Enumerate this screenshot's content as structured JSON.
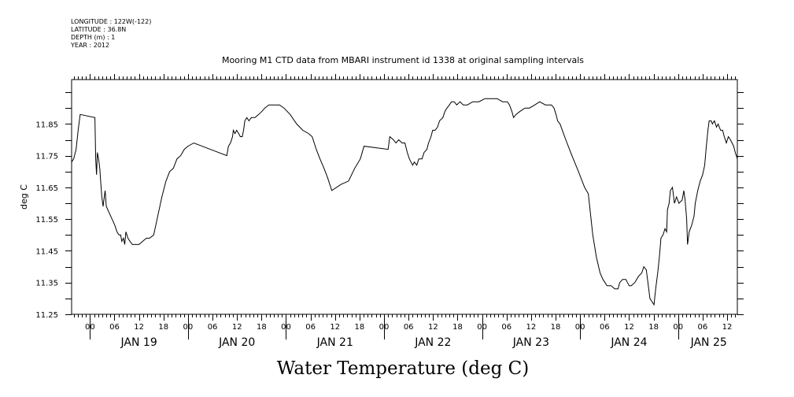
{
  "header": {
    "meta_lines": [
      "LONGITUDE : 122W(-122)",
      "LATITUDE : 36.8N",
      "DEPTH (m) : 1",
      "YEAR : 2012"
    ]
  },
  "chart_data": {
    "type": "line",
    "title": "Mooring M1 CTD data from MBARI instrument id 1338 at original sampling intervals",
    "xlabel": "Water Temperature (deg C)",
    "ylabel": "deg C",
    "x_unit": "hours since Jan 19 2012 00:00",
    "xlim": [
      -4.5,
      158.5
    ],
    "ylim": [
      11.25,
      11.99
    ],
    "y_ticks": [
      11.25,
      11.35,
      11.45,
      11.55,
      11.65,
      11.75,
      11.85
    ],
    "hour_ticks": [
      "00",
      "06",
      "12",
      "18",
      "00",
      "06",
      "12",
      "18",
      "00",
      "06",
      "12",
      "18",
      "00",
      "06",
      "12",
      "18",
      "00",
      "06",
      "12",
      "18",
      "00",
      "06",
      "12",
      "18",
      "00",
      "06",
      "12"
    ],
    "hour_tick_values": [
      0,
      6,
      12,
      18,
      24,
      30,
      36,
      42,
      48,
      54,
      60,
      66,
      72,
      78,
      84,
      90,
      96,
      102,
      108,
      114,
      120,
      126,
      132,
      138,
      144,
      150,
      156
    ],
    "day_labels": [
      "JAN 19",
      "JAN 20",
      "JAN 21",
      "JAN 22",
      "JAN 23",
      "JAN 24",
      "JAN 25"
    ],
    "day_label_values": [
      12,
      36,
      60,
      84,
      108,
      132,
      151.5
    ],
    "grid": false,
    "series": [
      {
        "color": "#000000",
        "points": [
          [
            -4.5,
            11.73
          ],
          [
            -4,
            11.74
          ],
          [
            -3.4,
            11.77
          ],
          [
            -2.9,
            11.83
          ],
          [
            -2.4,
            11.88
          ],
          [
            1.2,
            11.87
          ],
          [
            1.4,
            11.74
          ],
          [
            1.6,
            11.69
          ],
          [
            1.8,
            11.76
          ],
          [
            2.1,
            11.74
          ],
          [
            2.4,
            11.71
          ],
          [
            2.6,
            11.67
          ],
          [
            2.9,
            11.62
          ],
          [
            3.2,
            11.59
          ],
          [
            3.5,
            11.62
          ],
          [
            3.7,
            11.64
          ],
          [
            4,
            11.59
          ],
          [
            4.7,
            11.57
          ],
          [
            5.4,
            11.55
          ],
          [
            6.1,
            11.53
          ],
          [
            6.6,
            11.51
          ],
          [
            7.1,
            11.5
          ],
          [
            7.5,
            11.5
          ],
          [
            7.8,
            11.48
          ],
          [
            8.2,
            11.49
          ],
          [
            8.5,
            11.47
          ],
          [
            8.8,
            11.51
          ],
          [
            9.3,
            11.49
          ],
          [
            9.8,
            11.48
          ],
          [
            10.4,
            11.47
          ],
          [
            11.2,
            11.47
          ],
          [
            12,
            11.47
          ],
          [
            12.9,
            11.48
          ],
          [
            13.8,
            11.49
          ],
          [
            14.6,
            11.49
          ],
          [
            15.6,
            11.5
          ],
          [
            16.6,
            11.56
          ],
          [
            17.6,
            11.62
          ],
          [
            18.6,
            11.67
          ],
          [
            19.5,
            11.7
          ],
          [
            20.4,
            11.71
          ],
          [
            21.3,
            11.74
          ],
          [
            22.2,
            11.75
          ],
          [
            23.1,
            11.77
          ],
          [
            24,
            11.78
          ],
          [
            25.4,
            11.79
          ],
          [
            33.5,
            11.75
          ],
          [
            33.9,
            11.78
          ],
          [
            34.4,
            11.79
          ],
          [
            34.9,
            11.81
          ],
          [
            35.1,
            11.83
          ],
          [
            35.5,
            11.82
          ],
          [
            35.9,
            11.83
          ],
          [
            36.4,
            11.82
          ],
          [
            36.8,
            11.81
          ],
          [
            37.3,
            11.81
          ],
          [
            37.6,
            11.83
          ],
          [
            37.9,
            11.86
          ],
          [
            38.4,
            11.87
          ],
          [
            38.9,
            11.86
          ],
          [
            39.5,
            11.87
          ],
          [
            40.4,
            11.87
          ],
          [
            41.3,
            11.88
          ],
          [
            42.1,
            11.89
          ],
          [
            42.8,
            11.9
          ],
          [
            43.8,
            11.91
          ],
          [
            45.2,
            11.91
          ],
          [
            46.4,
            11.91
          ],
          [
            47.5,
            11.9
          ],
          [
            49,
            11.88
          ],
          [
            50.6,
            11.85
          ],
          [
            52.1,
            11.83
          ],
          [
            53.5,
            11.82
          ],
          [
            54.4,
            11.81
          ],
          [
            54.9,
            11.79
          ],
          [
            55.4,
            11.77
          ],
          [
            56.3,
            11.74
          ],
          [
            57.3,
            11.71
          ],
          [
            58.2,
            11.68
          ],
          [
            59.2,
            11.64
          ],
          [
            61.5,
            11.66
          ],
          [
            63.3,
            11.67
          ],
          [
            64.8,
            11.71
          ],
          [
            66.2,
            11.74
          ],
          [
            67.1,
            11.78
          ],
          [
            73,
            11.77
          ],
          [
            73.4,
            11.81
          ],
          [
            74.3,
            11.8
          ],
          [
            74.9,
            11.79
          ],
          [
            75.6,
            11.8
          ],
          [
            76.4,
            11.79
          ],
          [
            77.1,
            11.79
          ],
          [
            77.7,
            11.76
          ],
          [
            78.2,
            11.74
          ],
          [
            78.6,
            11.73
          ],
          [
            79,
            11.72
          ],
          [
            79.4,
            11.73
          ],
          [
            80,
            11.72
          ],
          [
            80.5,
            11.74
          ],
          [
            81.3,
            11.74
          ],
          [
            81.8,
            11.76
          ],
          [
            82.5,
            11.77
          ],
          [
            82.9,
            11.79
          ],
          [
            83.5,
            11.81
          ],
          [
            83.9,
            11.83
          ],
          [
            84.5,
            11.83
          ],
          [
            85.1,
            11.84
          ],
          [
            85.6,
            11.86
          ],
          [
            86.4,
            11.87
          ],
          [
            86.9,
            11.89
          ],
          [
            87.4,
            11.9
          ],
          [
            88,
            11.91
          ],
          [
            88.5,
            11.92
          ],
          [
            89.2,
            11.92
          ],
          [
            89.8,
            11.91
          ],
          [
            90.6,
            11.92
          ],
          [
            91.4,
            11.91
          ],
          [
            92.4,
            11.91
          ],
          [
            93.7,
            11.92
          ],
          [
            95.2,
            11.92
          ],
          [
            96.7,
            11.93
          ],
          [
            98.2,
            11.93
          ],
          [
            99.7,
            11.93
          ],
          [
            101,
            11.92
          ],
          [
            102.2,
            11.92
          ],
          [
            102.7,
            11.91
          ],
          [
            103.3,
            11.89
          ],
          [
            103.7,
            11.87
          ],
          [
            104.3,
            11.88
          ],
          [
            105.3,
            11.89
          ],
          [
            106.5,
            11.9
          ],
          [
            107.6,
            11.9
          ],
          [
            108.9,
            11.91
          ],
          [
            110.1,
            11.92
          ],
          [
            111.5,
            11.91
          ],
          [
            113,
            11.91
          ],
          [
            113.6,
            11.9
          ],
          [
            114.1,
            11.88
          ],
          [
            114.5,
            11.86
          ],
          [
            115.1,
            11.85
          ],
          [
            116.5,
            11.8
          ],
          [
            118,
            11.75
          ],
          [
            119.6,
            11.7
          ],
          [
            121.1,
            11.65
          ],
          [
            122,
            11.63
          ],
          [
            123.1,
            11.5
          ],
          [
            124,
            11.43
          ],
          [
            124.9,
            11.38
          ],
          [
            125.6,
            11.36
          ],
          [
            126.6,
            11.34
          ],
          [
            127.6,
            11.34
          ],
          [
            128.5,
            11.33
          ],
          [
            129.3,
            11.33
          ],
          [
            129.7,
            11.35
          ],
          [
            130.4,
            11.36
          ],
          [
            131.2,
            11.36
          ],
          [
            132,
            11.34
          ],
          [
            132.5,
            11.34
          ],
          [
            133.4,
            11.35
          ],
          [
            134.3,
            11.37
          ],
          [
            135.1,
            11.38
          ],
          [
            135.6,
            11.4
          ],
          [
            136.2,
            11.39
          ],
          [
            136.7,
            11.34
          ],
          [
            137.1,
            11.3
          ],
          [
            137.6,
            11.29
          ],
          [
            138.1,
            11.28
          ],
          [
            138.5,
            11.33
          ],
          [
            139,
            11.38
          ],
          [
            139.4,
            11.43
          ],
          [
            139.8,
            11.49
          ],
          [
            140.3,
            11.5
          ],
          [
            140.8,
            11.52
          ],
          [
            141.2,
            11.51
          ],
          [
            141.4,
            11.58
          ],
          [
            141.8,
            11.6
          ],
          [
            142.1,
            11.64
          ],
          [
            142.6,
            11.65
          ],
          [
            143.1,
            11.6
          ],
          [
            143.6,
            11.62
          ],
          [
            144.2,
            11.6
          ],
          [
            145,
            11.61
          ],
          [
            145.4,
            11.64
          ],
          [
            145.7,
            11.61
          ],
          [
            146.1,
            11.55
          ],
          [
            146.3,
            11.47
          ],
          [
            146.7,
            11.51
          ],
          [
            147.3,
            11.53
          ],
          [
            147.9,
            11.56
          ],
          [
            148.2,
            11.6
          ],
          [
            148.8,
            11.64
          ],
          [
            149.4,
            11.67
          ],
          [
            150,
            11.69
          ],
          [
            150.5,
            11.72
          ],
          [
            150.9,
            11.78
          ],
          [
            151.3,
            11.83
          ],
          [
            151.6,
            11.86
          ],
          [
            152.1,
            11.86
          ],
          [
            152.4,
            11.85
          ],
          [
            152.9,
            11.86
          ],
          [
            153.4,
            11.84
          ],
          [
            153.8,
            11.85
          ],
          [
            154.4,
            11.83
          ],
          [
            154.9,
            11.83
          ],
          [
            155.3,
            11.81
          ],
          [
            155.8,
            11.79
          ],
          [
            156.3,
            11.81
          ],
          [
            156.8,
            11.8
          ],
          [
            157.2,
            11.79
          ],
          [
            157.6,
            11.78
          ],
          [
            158,
            11.76
          ],
          [
            158.5,
            11.74
          ]
        ]
      }
    ]
  }
}
